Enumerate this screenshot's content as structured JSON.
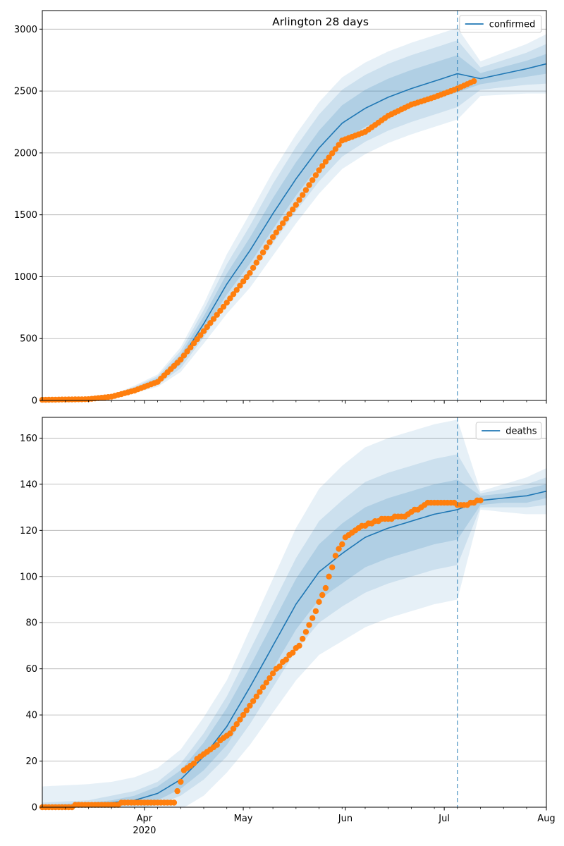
{
  "chart_data": [
    {
      "type": "line",
      "title": "Arlington 28 days",
      "xlabel": "",
      "ylabel": "",
      "x_domain": [
        "2020-03-01",
        "2020-08-01"
      ],
      "ylim": [
        0,
        3150
      ],
      "yticks": [
        0,
        500,
        1000,
        1500,
        2000,
        2500,
        3000
      ],
      "grid": "horizontal",
      "legend": "top-right",
      "forecast_start": "2020-07-05",
      "colors": {
        "model": "#1f77b4",
        "observed": "#ff7f0e"
      },
      "model_series": {
        "name": "confirmed",
        "x": [
          "2020-03-01",
          "2020-03-15",
          "2020-03-22",
          "2020-03-29",
          "2020-04-05",
          "2020-04-12",
          "2020-04-19",
          "2020-04-26",
          "2020-05-03",
          "2020-05-10",
          "2020-05-17",
          "2020-05-24",
          "2020-05-31",
          "2020-06-07",
          "2020-06-14",
          "2020-06-21",
          "2020-06-28",
          "2020-07-05",
          "2020-07-12",
          "2020-07-19",
          "2020-07-26",
          "2020-08-01"
        ],
        "y": [
          5,
          10,
          30,
          90,
          160,
          330,
          620,
          940,
          1210,
          1510,
          1790,
          2040,
          2240,
          2360,
          2450,
          2520,
          2580,
          2640,
          2600,
          2640,
          2680,
          2720
        ],
        "band_width_inner": [
          2,
          3,
          6,
          12,
          20,
          40,
          60,
          85,
          105,
          125,
          135,
          140,
          145,
          150,
          150,
          150,
          150,
          150,
          45,
          55,
          65,
          80
        ],
        "band_width_mid": [
          3,
          5,
          10,
          20,
          35,
          70,
          110,
          160,
          200,
          240,
          260,
          270,
          270,
          270,
          270,
          270,
          270,
          270,
          90,
          110,
          130,
          160
        ],
        "band_width_outer": [
          4,
          7,
          14,
          30,
          50,
          100,
          160,
          240,
          300,
          340,
          360,
          370,
          370,
          370,
          370,
          370,
          370,
          370,
          140,
          170,
          200,
          240
        ]
      },
      "observed_series": {
        "x": [
          "2020-03-01",
          "2020-03-15",
          "2020-03-22",
          "2020-03-29",
          "2020-04-05",
          "2020-04-12",
          "2020-04-19",
          "2020-04-26",
          "2020-05-03",
          "2020-05-10",
          "2020-05-17",
          "2020-05-24",
          "2020-05-31",
          "2020-06-07",
          "2020-06-14",
          "2020-06-21",
          "2020-06-28",
          "2020-07-05",
          "2020-07-10"
        ],
        "y": [
          5,
          10,
          30,
          80,
          150,
          330,
          560,
          790,
          1030,
          1320,
          1580,
          1860,
          2100,
          2170,
          2300,
          2390,
          2450,
          2520,
          2580
        ]
      }
    },
    {
      "type": "line",
      "title": "",
      "xlabel": "",
      "ylabel": "",
      "x_domain": [
        "2020-03-01",
        "2020-08-01"
      ],
      "ylim": [
        0,
        169
      ],
      "yticks": [
        0,
        20,
        40,
        60,
        80,
        100,
        120,
        140,
        160
      ],
      "grid": "horizontal",
      "legend": "top-right",
      "forecast_start": "2020-07-05",
      "colors": {
        "model": "#1f77b4",
        "observed": "#ff7f0e"
      },
      "model_series": {
        "name": "deaths",
        "x": [
          "2020-03-01",
          "2020-03-15",
          "2020-03-22",
          "2020-03-29",
          "2020-04-05",
          "2020-04-12",
          "2020-04-19",
          "2020-04-26",
          "2020-05-03",
          "2020-05-10",
          "2020-05-17",
          "2020-05-24",
          "2020-05-31",
          "2020-06-07",
          "2020-06-14",
          "2020-06-21",
          "2020-06-28",
          "2020-07-05",
          "2020-07-12",
          "2020-07-19",
          "2020-07-26",
          "2020-08-01"
        ],
        "y": [
          0,
          1,
          2,
          3,
          6,
          12,
          22,
          35,
          52,
          70,
          88,
          102,
          110,
          117,
          121,
          124,
          127,
          129,
          133,
          134,
          135,
          137
        ],
        "band_width_inner": [
          1,
          1,
          1,
          2,
          3,
          4,
          6,
          8,
          9,
          10,
          11,
          12,
          13,
          13,
          13,
          13,
          13,
          13,
          2,
          2,
          3,
          3
        ],
        "band_width_mid": [
          2,
          2,
          3,
          4,
          5,
          7,
          10,
          13,
          16,
          18,
          20,
          22,
          23,
          24,
          24,
          24,
          24,
          24,
          3,
          4,
          5,
          6
        ],
        "band_width_outer": [
          9,
          9,
          9,
          10,
          11,
          13,
          17,
          20,
          25,
          29,
          33,
          36,
          38,
          39,
          39,
          39,
          39,
          39,
          4,
          6,
          8,
          10
        ]
      },
      "observed_series": {
        "x": [
          "2020-03-01",
          "2020-03-20",
          "2020-03-29",
          "2020-04-10",
          "2020-04-13",
          "2020-04-20",
          "2020-04-27",
          "2020-05-04",
          "2020-05-11",
          "2020-05-18",
          "2020-05-22",
          "2020-05-26",
          "2020-05-29",
          "2020-06-01",
          "2020-06-05",
          "2020-06-12",
          "2020-06-19",
          "2020-06-26",
          "2020-07-02",
          "2020-07-07",
          "2020-07-12"
        ],
        "y": [
          0,
          1,
          2,
          2,
          16,
          24,
          32,
          46,
          60,
          70,
          82,
          95,
          109,
          117,
          121,
          125,
          126,
          132,
          132,
          131,
          133
        ]
      }
    }
  ],
  "x_axis": {
    "tick_labels": [
      {
        "date": "2020-04-01",
        "label": "Apr",
        "sublabel": "2020"
      },
      {
        "date": "2020-05-01",
        "label": "May",
        "sublabel": ""
      },
      {
        "date": "2020-06-01",
        "label": "Jun",
        "sublabel": ""
      },
      {
        "date": "2020-07-01",
        "label": "Jul",
        "sublabel": ""
      },
      {
        "date": "2020-08-01",
        "label": "Aug",
        "sublabel": ""
      }
    ]
  }
}
